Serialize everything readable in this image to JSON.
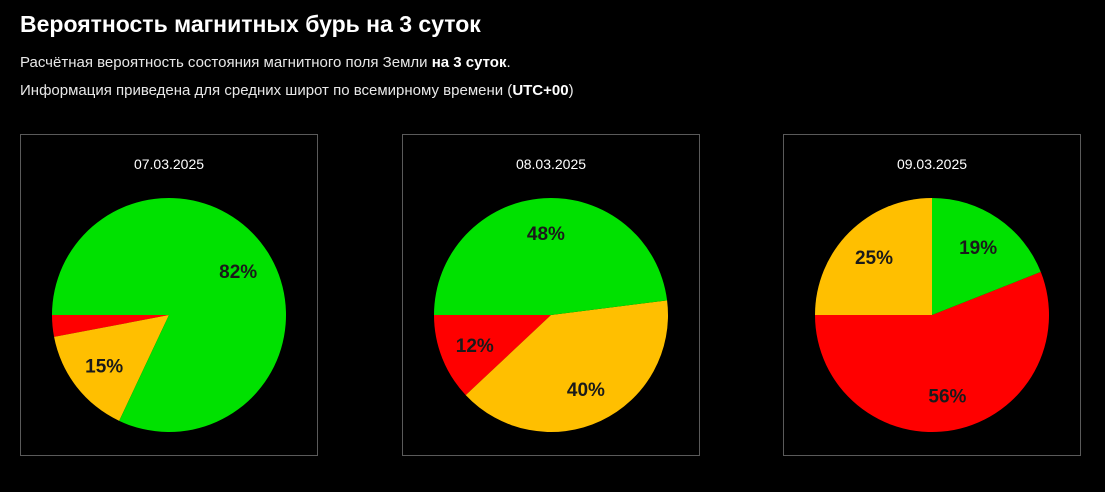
{
  "header": {
    "title": "Вероятность магнитных бурь на 3 суток",
    "line1_text": "Расчётная вероятность состояния магнитного поля Земли ",
    "line1_bold": "на 3 суток",
    "line1_end": ".",
    "line2_text": "Информация приведена для средних широт по всемирному времени (",
    "line2_bold": "UTC+00",
    "line2_end": ")"
  },
  "chart_data": [
    {
      "type": "pie",
      "title": "07.03.2025",
      "slices": [
        {
          "value": 3,
          "color": "#ff0000",
          "label": ""
        },
        {
          "value": 15,
          "color": "#ffbf00",
          "label": "15%"
        },
        {
          "value": 82,
          "color": "#00e100",
          "label": "82%"
        }
      ]
    },
    {
      "type": "pie",
      "title": "08.03.2025",
      "slices": [
        {
          "value": 12,
          "color": "#ff0000",
          "label": "12%"
        },
        {
          "value": 40,
          "color": "#ffbf00",
          "label": "40%"
        },
        {
          "value": 48,
          "color": "#00e100",
          "label": "48%"
        }
      ]
    },
    {
      "type": "pie",
      "title": "09.03.2025",
      "slices": [
        {
          "value": 56,
          "color": "#ff0000",
          "label": "56%"
        },
        {
          "value": 19,
          "color": "#00e100",
          "label": "19%"
        },
        {
          "value": 25,
          "color": "#ffbf00",
          "label": "25%"
        }
      ]
    }
  ]
}
